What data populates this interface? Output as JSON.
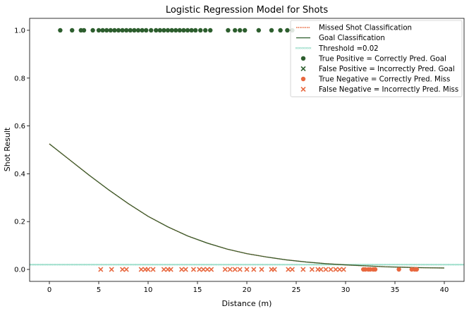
{
  "chart_data": {
    "type": "scatter",
    "title": "Logistic Regression Model for Shots",
    "xlabel": "Distance (m)",
    "ylabel": "Shot Result",
    "xlim": [
      -2,
      42
    ],
    "ylim": [
      -0.05,
      1.05
    ],
    "x_ticks": [
      0,
      5,
      10,
      15,
      20,
      25,
      30,
      35,
      40
    ],
    "y_ticks": [
      0.0,
      0.2,
      0.4,
      0.6,
      0.8,
      1.0
    ],
    "x_tick_labels": [
      "0",
      "5",
      "10",
      "15",
      "20",
      "25",
      "30",
      "35",
      "40"
    ],
    "y_tick_labels": [
      "0.0",
      "0.2",
      "0.4",
      "0.6",
      "0.8",
      "1.0"
    ],
    "grid": false,
    "legend_position": "top-right",
    "colors": {
      "goal": "#2d5e2e",
      "miss": "#e8683f",
      "threshold": "#8fd9c3",
      "axes": "#000000"
    },
    "legend": [
      {
        "label": "Missed Shot Classification",
        "kind": "dotted-line",
        "color": "#e8683f"
      },
      {
        "label": "Goal Classification",
        "kind": "line",
        "color": "#2d5e2e"
      },
      {
        "label": "Threshold =0.02",
        "kind": "x-line",
        "color": "#8fd9c3"
      },
      {
        "label": "True Positive = Correctly Pred. Goal",
        "kind": "circle",
        "color": "#2d5e2e"
      },
      {
        "label": "False Positive = Incorrectly Pred. Goal",
        "kind": "x",
        "color": "#2d5e2e"
      },
      {
        "label": "True Negative = Correctly Pred. Miss",
        "kind": "circle",
        "color": "#e8683f"
      },
      {
        "label": "False Negative = Incorrectly Pred. Miss",
        "kind": "x",
        "color": "#e8683f"
      }
    ],
    "threshold": 0.02,
    "curve": {
      "name": "Goal Classification",
      "x": [
        0,
        2,
        4,
        6,
        8,
        10,
        12,
        14,
        16,
        18,
        20,
        22,
        24,
        26,
        28,
        30,
        32,
        34,
        36,
        38,
        40
      ],
      "y": [
        0.525,
        0.46,
        0.395,
        0.333,
        0.275,
        0.222,
        0.178,
        0.14,
        0.11,
        0.085,
        0.066,
        0.052,
        0.04,
        0.031,
        0.024,
        0.019,
        0.015,
        0.011,
        0.009,
        0.007,
        0.006
      ]
    },
    "series": [
      {
        "name": "True Positive = Correctly Pred. Goal",
        "marker": "circle",
        "color": "#2d5e2e",
        "y": 1.0,
        "x": [
          1.1,
          2.3,
          3.2,
          3.5,
          4.4,
          5.0,
          5.4,
          5.8,
          6.2,
          6.6,
          7.0,
          7.4,
          7.8,
          8.2,
          8.6,
          9.0,
          9.4,
          9.8,
          10.3,
          10.8,
          11.2,
          11.6,
          12.0,
          12.4,
          12.8,
          13.2,
          13.6,
          14.0,
          14.4,
          14.8,
          15.3,
          15.8,
          16.3,
          18.1,
          18.8,
          19.3,
          19.8,
          21.2,
          22.5,
          23.4,
          24.1,
          24.6
        ]
      },
      {
        "name": "False Negative = Incorrectly Pred. Miss",
        "marker": "x",
        "color": "#e8683f",
        "y": 0.0,
        "x": [
          5.2,
          6.3,
          7.4,
          7.8,
          9.3,
          9.7,
          10.0,
          10.5,
          11.6,
          12.0,
          12.3,
          13.4,
          13.8,
          14.6,
          15.2,
          15.6,
          16.0,
          16.4,
          17.8,
          18.3,
          18.8,
          19.3,
          20.0,
          20.7,
          21.5,
          22.5,
          22.8,
          24.2,
          24.6,
          25.7,
          26.6,
          27.2,
          27.5,
          28.0,
          28.5,
          29.0,
          29.4,
          29.8
        ]
      },
      {
        "name": "True Negative = Correctly Pred. Miss",
        "marker": "circle",
        "color": "#e8683f",
        "y": 0.0,
        "x": [
          31.8,
          32.0,
          32.3,
          32.5,
          32.8,
          33.0,
          35.4,
          36.7,
          37.0,
          37.2
        ]
      },
      {
        "name": "False Positive = Incorrectly Pred. Goal",
        "marker": "x",
        "color": "#2d5e2e",
        "y": 1.0,
        "x": []
      }
    ]
  }
}
